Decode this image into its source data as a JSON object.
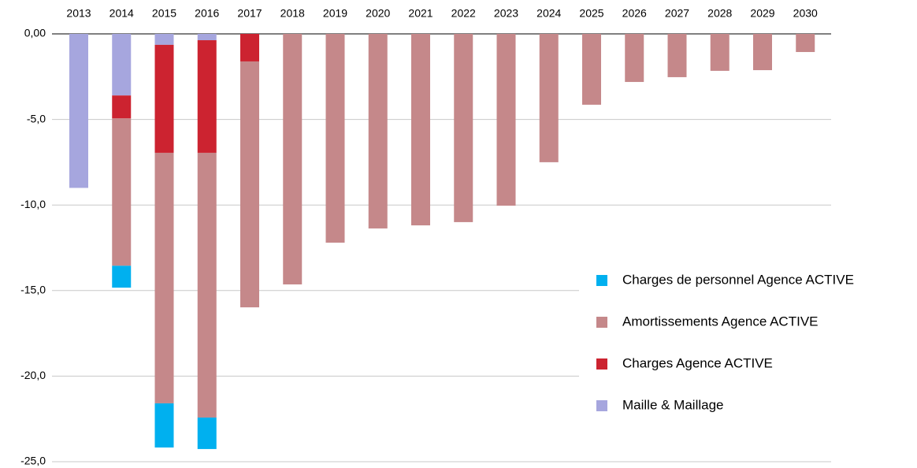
{
  "chart_data": {
    "type": "stacked_bar",
    "categories": [
      "2013",
      "2014",
      "2015",
      "2016",
      "2017",
      "2018",
      "2019",
      "2020",
      "2021",
      "2022",
      "2023",
      "2024",
      "2025",
      "2026",
      "2027",
      "2028",
      "2029",
      "2030"
    ],
    "series": [
      {
        "name": "Maille & Maillage",
        "color": "#a6a6de",
        "values": [
          -9.0,
          -3.6,
          -0.64,
          -0.37,
          0,
          0,
          0,
          0,
          0,
          0,
          0,
          0,
          0,
          0,
          0,
          0,
          0,
          0
        ]
      },
      {
        "name": "Charges Agence ACTIVE",
        "color": "#cc2330",
        "values": [
          0,
          -1.34,
          -6.31,
          -6.58,
          -1.61,
          0,
          0,
          0,
          0,
          0,
          0,
          0,
          0,
          0,
          0,
          0,
          0,
          0
        ]
      },
      {
        "name": "Amortissements Agence ACTIVE",
        "color": "#c5888a",
        "values": [
          0,
          -8.61,
          -14.64,
          -15.47,
          -14.37,
          -14.64,
          -12.2,
          -11.37,
          -11.19,
          -11.0,
          -10.04,
          -7.5,
          -4.14,
          -2.81,
          -2.53,
          -2.16,
          -2.12,
          -1.06
        ]
      },
      {
        "name": "Charges de personnel Agence ACTIVE",
        "color": "#00b0ef",
        "values": [
          0,
          -1.28,
          -2.58,
          -1.84,
          0,
          0,
          0,
          0,
          0,
          0,
          0,
          0,
          0,
          0,
          0,
          0,
          0,
          0
        ]
      }
    ],
    "ylim": [
      -25,
      0
    ],
    "yticks": [
      {
        "value": 0,
        "label": "0,00"
      },
      {
        "value": -5,
        "label": "-5,0"
      },
      {
        "value": -10,
        "label": "-10,0"
      },
      {
        "value": -15,
        "label": "-15,0"
      },
      {
        "value": -20,
        "label": "-20,0"
      },
      {
        "value": -25,
        "label": "-25,0"
      }
    ],
    "grid": true
  }
}
